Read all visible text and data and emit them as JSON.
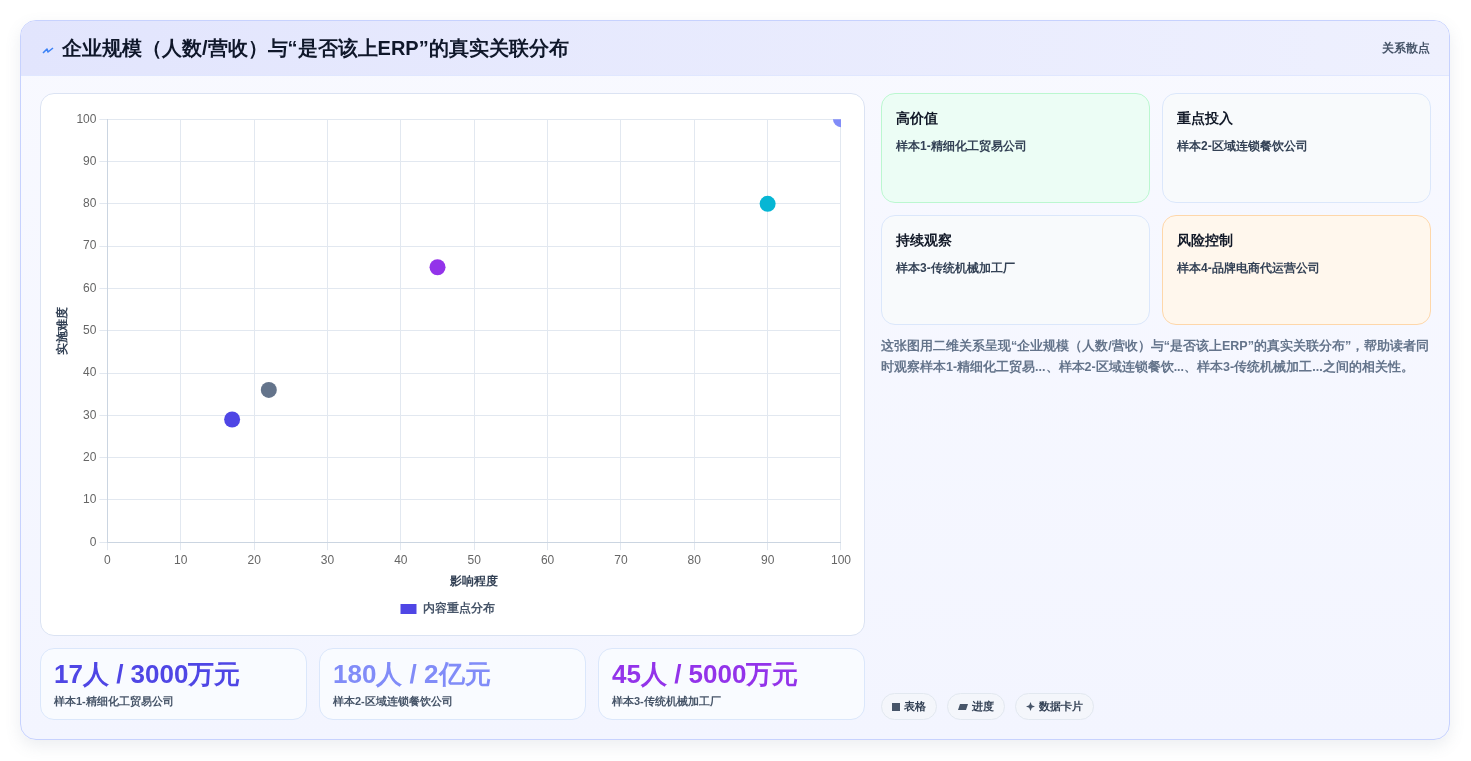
{
  "chart_data": {
    "type": "scatter",
    "title": "企业规模（人数/营收）与“是否该上ERP”的真实关联分布",
    "subtitle": "关系散点",
    "xlabel": "影响程度",
    "ylabel": "实施难度",
    "x": [
      17,
      22,
      45,
      90,
      100
    ],
    "series": [
      {
        "name": "内容重点分布",
        "colors": [
          "#4f46e5",
          "#64748b",
          "#9333ea",
          "#06b6d4",
          "#818cf8"
        ],
        "values": [
          29,
          36,
          65,
          80,
          100
        ]
      }
    ],
    "xlim": [
      0,
      100
    ],
    "xticks": [
      0,
      10,
      20,
      30,
      40,
      50,
      60,
      70,
      80,
      90,
      100
    ],
    "ylim": [
      0,
      100
    ],
    "yticks": [
      0,
      10,
      20,
      30,
      40,
      50,
      60,
      70,
      80,
      90,
      100
    ],
    "grid": true,
    "legend": "bottom",
    "marker": "circle",
    "annotations": [
      "高价值",
      "样本1-精细化工贸易公司",
      "重点投入",
      "样本2-区域连锁餐饮公司",
      "持续观察",
      "样本3-传统机械加工厂",
      "风险控制",
      "样本4-品牌电商代运营公司",
      "这张图用二维关系呈现“企业规模（人数/营收）与“是否该上ERP”的真实关联分布”，帮助读者同时观察样本1-精细化工贸易...、样本2-区域连锁餐饮...、样本3-传统机械加工...之间的相关性。",
      "17人 / 3000万元",
      "样本1-精细化工贸易公司",
      "180人 / 2亿元",
      "样本2-区域连锁餐饮公司",
      "45人 / 5000万元",
      "样本3-传统机械加工厂",
      "表格",
      "进度",
      "数据卡片"
    ]
  }
}
